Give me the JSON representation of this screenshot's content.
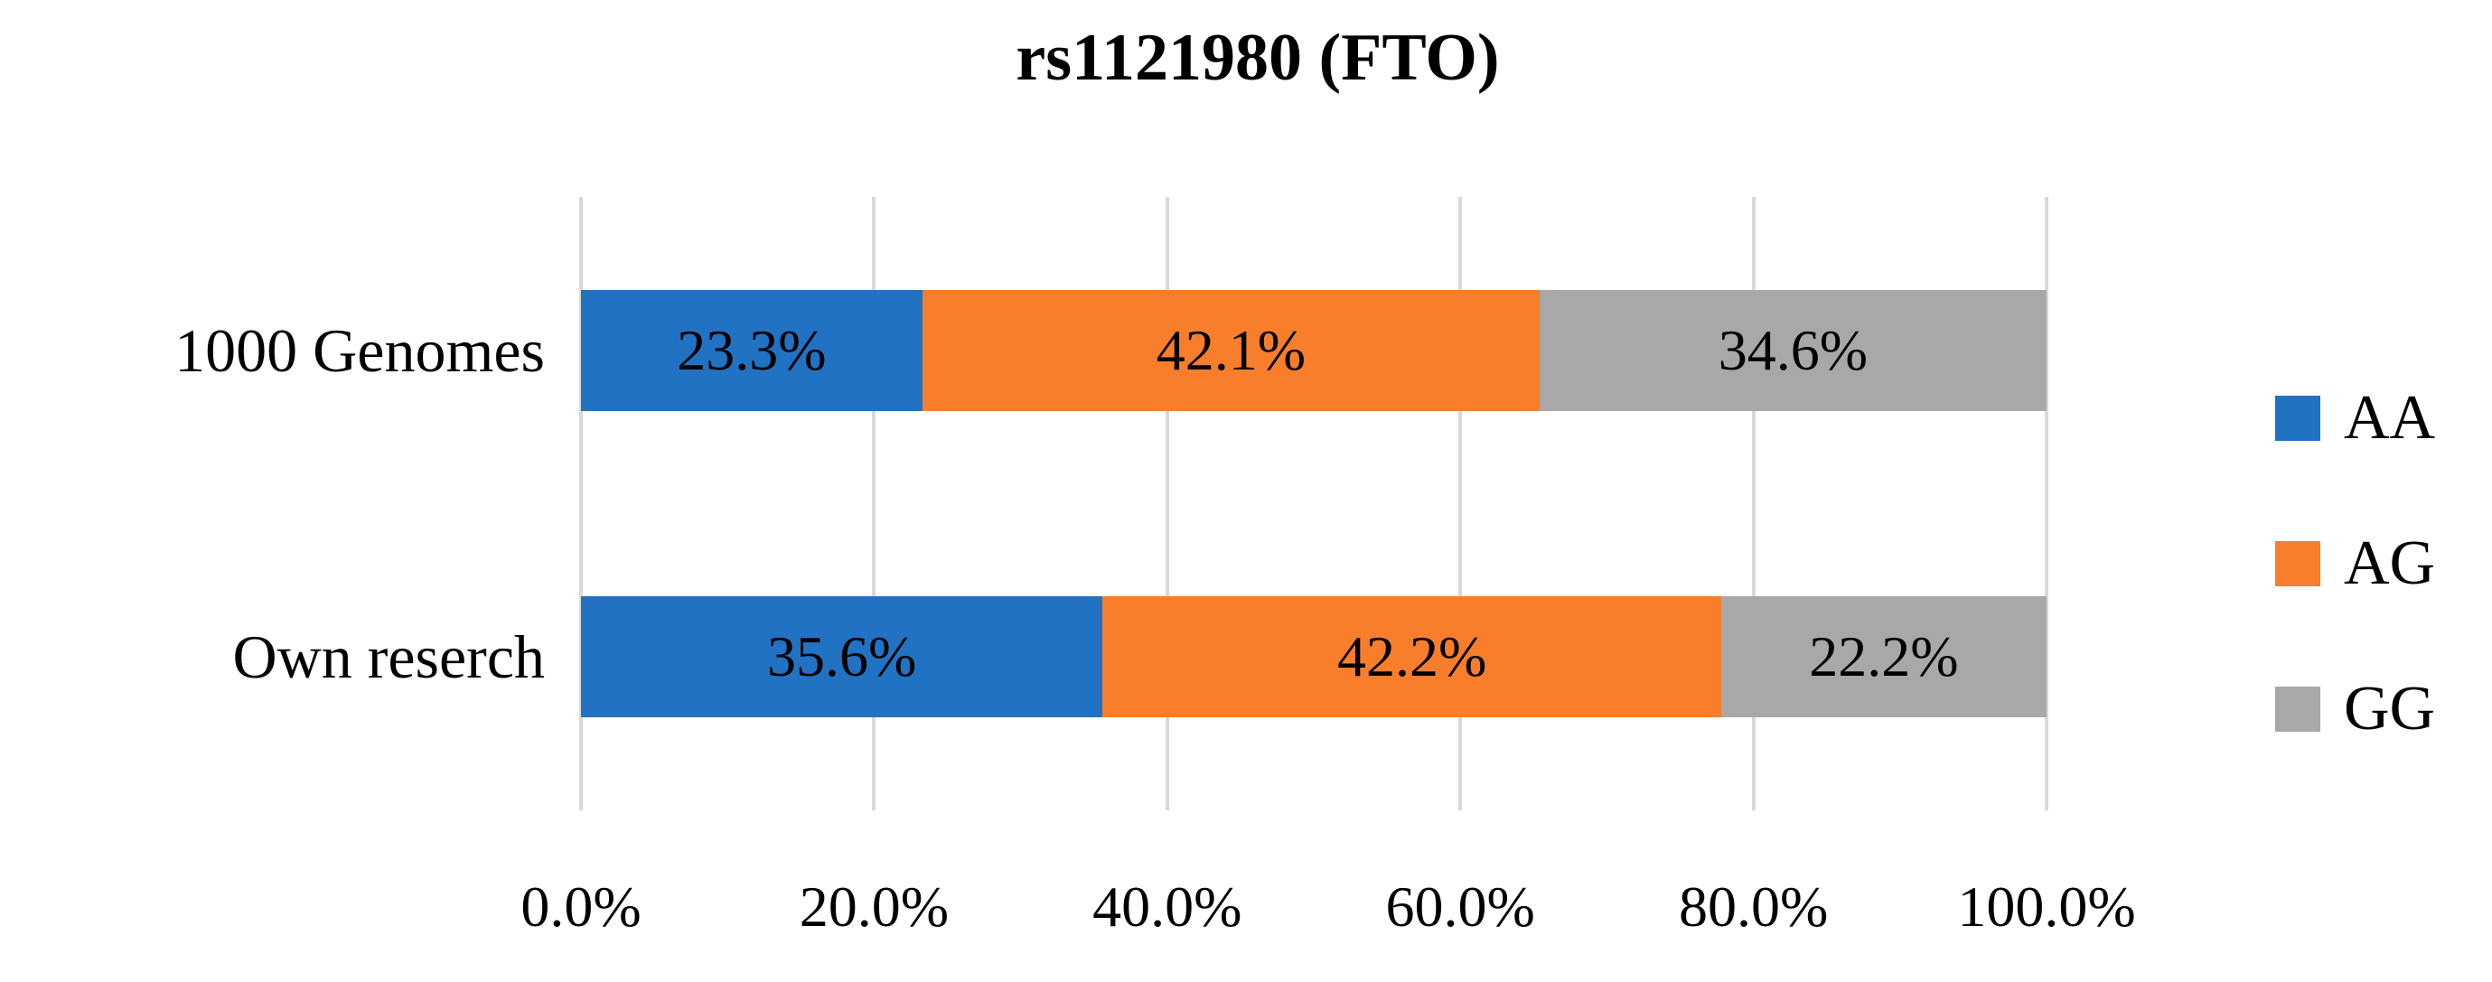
{
  "chart_data": {
    "type": "bar",
    "orientation": "horizontal",
    "stacked": true,
    "title": "rs1121980 (FTO)",
    "categories": [
      "1000 Genomes",
      "Own reserch"
    ],
    "series": [
      {
        "name": "AA",
        "color": "#2272C3",
        "values": [
          23.3,
          35.6
        ]
      },
      {
        "name": "AG",
        "color": "#F87E2B",
        "values": [
          42.1,
          42.2
        ]
      },
      {
        "name": "GG",
        "color": "#A8A8A8",
        "values": [
          34.6,
          22.2
        ]
      }
    ],
    "data_labels": [
      [
        "23.3%",
        "42.1%",
        "34.6%"
      ],
      [
        "35.6%",
        "42.2%",
        "22.2%"
      ]
    ],
    "x_axis": {
      "range": [
        0,
        100
      ],
      "ticks": [
        {
          "value": 0,
          "label": "0.0%"
        },
        {
          "value": 20,
          "label": "20.0%"
        },
        {
          "value": 40,
          "label": "40.0%"
        },
        {
          "value": 60,
          "label": "60.0%"
        },
        {
          "value": 80,
          "label": "80.0%"
        },
        {
          "value": 100,
          "label": "100.0%"
        }
      ]
    },
    "legend": {
      "position": "right",
      "entries": [
        "AA",
        "AG",
        "GG"
      ]
    },
    "grid": "vertical",
    "gridline_color": "#D9D9D9",
    "text_color": "#000000",
    "background": "#FFFFFF"
  }
}
